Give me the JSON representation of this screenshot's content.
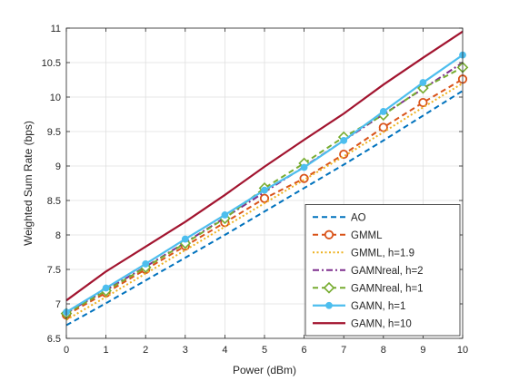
{
  "chart_data": {
    "type": "line",
    "xlabel": "Power (dBm)",
    "ylabel": "Weighted Sum Rate (bps)",
    "xlim": [
      0,
      10
    ],
    "ylim": [
      6.5,
      11
    ],
    "x": [
      0,
      1,
      2,
      3,
      4,
      5,
      6,
      7,
      8,
      9,
      10
    ],
    "xticks": [
      "0",
      "1",
      "2",
      "3",
      "4",
      "5",
      "6",
      "7",
      "8",
      "9",
      "10"
    ],
    "yticks": [
      "6.5",
      "7",
      "7.5",
      "8",
      "8.5",
      "9",
      "9.5",
      "10",
      "10.5",
      "11"
    ],
    "grid": true,
    "legend_position": "bottom-right",
    "series": [
      {
        "name": "AO",
        "color": "#0072BD",
        "style": "dashed",
        "marker": "none",
        "values": [
          6.69,
          7.01,
          7.34,
          7.67,
          8.0,
          8.34,
          8.68,
          9.02,
          9.37,
          9.73,
          10.09
        ]
      },
      {
        "name": "GMML",
        "color": "#D95319",
        "style": "dashed",
        "marker": "circle",
        "values": [
          6.84,
          7.16,
          7.5,
          7.84,
          8.18,
          8.53,
          8.82,
          9.17,
          9.56,
          9.92,
          10.26
        ]
      },
      {
        "name": "GMML, h=1.9",
        "color": "#EDB120",
        "style": "dotted",
        "marker": "none",
        "values": [
          6.77,
          7.1,
          7.44,
          7.78,
          8.12,
          8.46,
          8.8,
          9.14,
          9.49,
          9.85,
          10.2
        ]
      },
      {
        "name": "GAMNreal, h=2",
        "color": "#7E2F8E",
        "style": "dashdot",
        "marker": "none",
        "values": [
          6.87,
          7.2,
          7.54,
          7.89,
          8.25,
          8.62,
          8.99,
          9.37,
          9.75,
          10.12,
          10.5
        ]
      },
      {
        "name": "GAMNreal, h=1",
        "color": "#77AC30",
        "style": "dashed",
        "marker": "diamond",
        "values": [
          6.86,
          7.19,
          7.53,
          7.88,
          8.24,
          8.68,
          9.04,
          9.42,
          9.74,
          10.13,
          10.43
        ]
      },
      {
        "name": "GAMN, h=1",
        "color": "#4DBEEE",
        "style": "solid",
        "marker": "dot",
        "values": [
          6.88,
          7.23,
          7.58,
          7.94,
          8.29,
          8.65,
          8.98,
          9.37,
          9.79,
          10.21,
          10.61
        ]
      },
      {
        "name": "GAMN, h=10",
        "color": "#A2142F",
        "style": "solid",
        "marker": "none",
        "values": [
          7.05,
          7.47,
          7.83,
          8.19,
          8.58,
          8.99,
          9.38,
          9.76,
          10.18,
          10.57,
          10.95
        ]
      }
    ]
  }
}
